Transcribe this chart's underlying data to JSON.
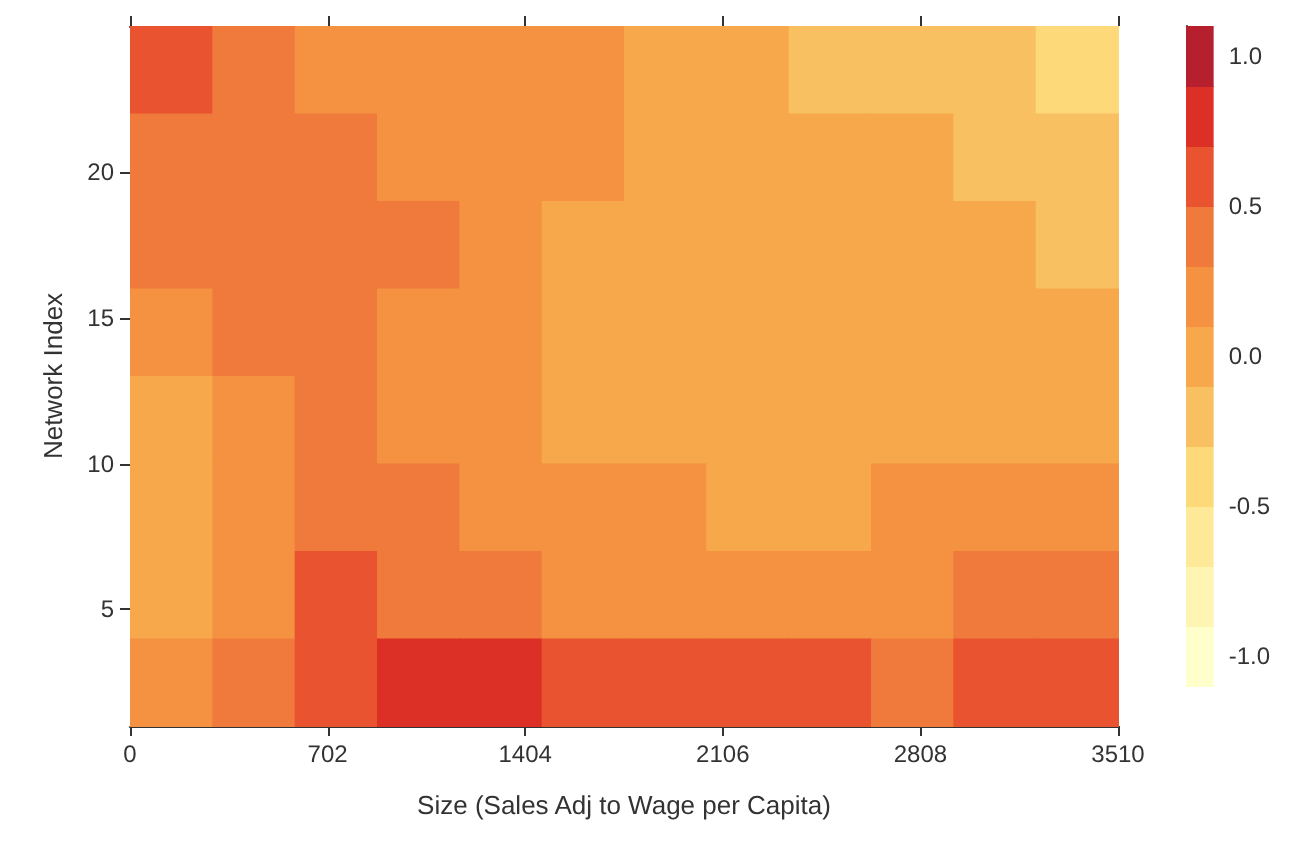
{
  "chart_data": {
    "type": "heatmap",
    "xlabel": "Size (Sales Adj to Wage per Capita)",
    "ylabel": "Network Index",
    "x": [
      146.25,
      438.75,
      731.25,
      1023.75,
      1316.25,
      1608.75,
      1901.25,
      2193.75,
      2486.25,
      2778.75,
      3071.25,
      3363.75
    ],
    "y": [
      23.5,
      20.5,
      17.5,
      14.5,
      11.5,
      8.5,
      5.5,
      2.5
    ],
    "xlim": [
      0,
      3510
    ],
    "xticks": [
      0,
      702,
      1404,
      2106,
      2808,
      3510
    ],
    "ylim": [
      1,
      25
    ],
    "yticks": [
      5,
      10,
      15,
      20
    ],
    "cells": [
      [
        0.6,
        0.4,
        0.2,
        0.2,
        0.2,
        0.2,
        0,
        0,
        -0.2,
        -0.2,
        -0.2,
        -0.4
      ],
      [
        0.4,
        0.4,
        0.4,
        0.2,
        0.2,
        0.2,
        0,
        0,
        0,
        0,
        -0.2,
        -0.2
      ],
      [
        0.4,
        0.4,
        0.4,
        0.4,
        0.2,
        0,
        0,
        0,
        0,
        0,
        0,
        -0.2
      ],
      [
        0.2,
        0.4,
        0.4,
        0.2,
        0.2,
        0,
        0,
        0,
        0,
        0,
        0,
        0
      ],
      [
        0,
        0.2,
        0.4,
        0.2,
        0.2,
        0,
        0,
        0,
        0,
        0,
        0,
        0
      ],
      [
        0,
        0.2,
        0.4,
        0.4,
        0.2,
        0.2,
        0.2,
        0,
        0,
        0.2,
        0.2,
        0.2
      ],
      [
        0,
        0.2,
        0.6,
        0.4,
        0.4,
        0.2,
        0.2,
        0.2,
        0.2,
        0.2,
        0.4,
        0.4
      ],
      [
        0.2,
        0.4,
        0.6,
        0.8,
        0.8,
        0.6,
        0.6,
        0.6,
        0.6,
        0.4,
        0.6,
        0.6
      ]
    ],
    "clim": [
      -1.1,
      1.1
    ],
    "cticks": [
      {
        "value": -1,
        "label": "-1.0"
      },
      {
        "value": -0.5,
        "label": "-0.5"
      },
      {
        "value": 0,
        "label": "0.0"
      },
      {
        "value": 0.5,
        "label": "0.5"
      },
      {
        "value": 1,
        "label": "1.0"
      }
    ],
    "colors": [
      "#ffffcc",
      "#fff5b3",
      "#fee999",
      "#fdd97a",
      "#f8c060",
      "#f6a84b",
      "#f49242",
      "#f07a3c",
      "#e9532f",
      "#dc2f26",
      "#b51f2e"
    ]
  }
}
